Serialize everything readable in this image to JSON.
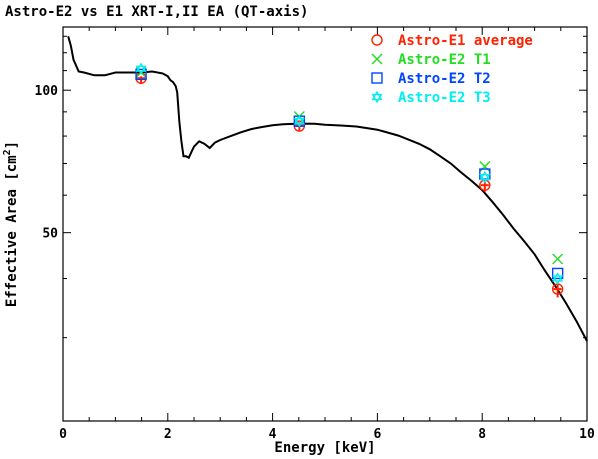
{
  "chart_data": {
    "type": "scatter",
    "title": "Astro-E2 vs E1 XRT-I,II EA (QT-axis)",
    "xlabel": "Energy [keV]",
    "ylabel": "Effective Area [cm",
    "ylabel_sup": "2",
    "ylabel_end": "]",
    "xlim": [
      0,
      10
    ],
    "ylim": [
      20,
      136
    ],
    "y_scale": "log",
    "x_ticks_major": [
      0,
      2,
      4,
      6,
      8,
      10
    ],
    "x_tick_labels": [
      "0",
      "2",
      "4",
      "6",
      "8",
      "10"
    ],
    "y_ticks_labeled": [
      50,
      100
    ],
    "y_tick_labels": [
      "50",
      "100"
    ],
    "grid": false,
    "legend_position": "top-right",
    "curve": {
      "x": [
        0.1,
        0.15,
        0.2,
        0.3,
        0.4,
        0.6,
        0.8,
        1.0,
        1.2,
        1.5,
        1.7,
        1.9,
        2.0,
        2.05,
        2.1,
        2.15,
        2.18,
        2.22,
        2.26,
        2.3,
        2.35,
        2.4,
        2.45,
        2.5,
        2.6,
        2.7,
        2.8,
        2.9,
        3.0,
        3.2,
        3.4,
        3.6,
        3.8,
        4.0,
        4.2,
        4.5,
        4.8,
        5.0,
        5.3,
        5.6,
        6.0,
        6.4,
        6.8,
        7.0,
        7.2,
        7.4,
        7.6,
        7.8,
        8.0,
        8.2,
        8.4,
        8.6,
        8.8,
        9.0,
        9.2,
        9.4,
        9.6,
        9.8,
        10.0
      ],
      "y": [
        130,
        124,
        116,
        109.5,
        109,
        107.5,
        107.5,
        109,
        109,
        109,
        109.5,
        108.5,
        107,
        105,
        104,
        102,
        99,
        86,
        78,
        72.5,
        72.5,
        72,
        74,
        76,
        78,
        77,
        75.5,
        77.5,
        78.5,
        80,
        81.5,
        82.8,
        83.6,
        84.3,
        84.7,
        85,
        84.9,
        84.5,
        84.2,
        83.8,
        82.5,
        80.2,
        77,
        75,
        72.5,
        70,
        67,
        64.3,
        61.5,
        58,
        54.5,
        51,
        48,
        45,
        41.5,
        38.5,
        35.5,
        32.5,
        29.5
      ]
    },
    "series": [
      {
        "name": "Astro-E1 average",
        "marker": "circle",
        "color": "#ff2200",
        "x": [
          1.49,
          4.51,
          8.05,
          9.44
        ],
        "y": [
          106,
          84,
          63,
          38
        ],
        "yerr_minus": [
          3,
          2,
          2,
          1.5
        ],
        "yerr_plus": [
          1,
          1,
          1,
          1
        ]
      },
      {
        "name": "Astro-E2 T1",
        "marker": "cross",
        "color": "#22dd22",
        "x": [
          1.49,
          4.51,
          8.05,
          9.44
        ],
        "y": [
          109,
          88,
          69,
          44
        ]
      },
      {
        "name": "Astro-E2 T2",
        "marker": "square",
        "color": "#0044ff",
        "x": [
          1.49,
          4.51,
          8.05,
          9.44
        ],
        "y": [
          108,
          86,
          66.5,
          41
        ]
      },
      {
        "name": "Astro-E2 T3",
        "marker": "star",
        "color": "#00eeee",
        "x": [
          1.49,
          4.51,
          8.05,
          9.44
        ],
        "y": [
          111,
          86,
          65.5,
          40
        ]
      }
    ]
  }
}
